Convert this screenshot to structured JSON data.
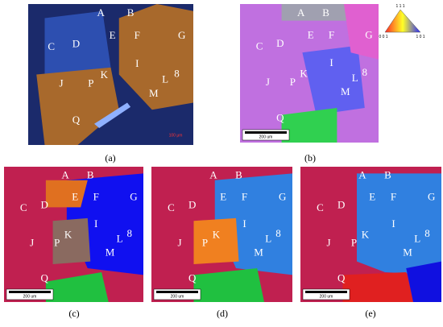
{
  "panels": [
    {
      "caption": "(a)",
      "grain_labels": [
        "A",
        "B",
        "C",
        "D",
        "E",
        "F",
        "G",
        "I",
        "K",
        "J",
        "P",
        "L",
        "8",
        "M",
        "Q"
      ],
      "scale_bar": "100 μm"
    },
    {
      "caption": "(b)",
      "grain_labels": [
        "A",
        "B",
        "C",
        "D",
        "E",
        "F",
        "G",
        "I",
        "K",
        "J",
        "P",
        "L",
        "8",
        "M",
        "Q"
      ],
      "scale_bar": "200 um"
    },
    {
      "caption": "(c)",
      "grain_labels": [
        "A",
        "B",
        "C",
        "D",
        "E",
        "F",
        "G",
        "I",
        "K",
        "J",
        "P",
        "L",
        "8",
        "M",
        "Q"
      ],
      "scale_bar": "200 um"
    },
    {
      "caption": "(d)",
      "grain_labels": [
        "A",
        "B",
        "C",
        "D",
        "E",
        "F",
        "G",
        "I",
        "K",
        "J",
        "P",
        "L",
        "8",
        "M",
        "Q"
      ],
      "scale_bar": "200 um"
    },
    {
      "caption": "(e)",
      "grain_labels": [
        "A",
        "B",
        "C",
        "D",
        "E",
        "F",
        "G",
        "I",
        "K",
        "J",
        "P",
        "L",
        "8",
        "M",
        "Q"
      ],
      "scale_bar": "200 um"
    }
  ],
  "legend": {
    "labels": [
      "1 1 1",
      "0 0 1",
      "1 0 1"
    ]
  }
}
